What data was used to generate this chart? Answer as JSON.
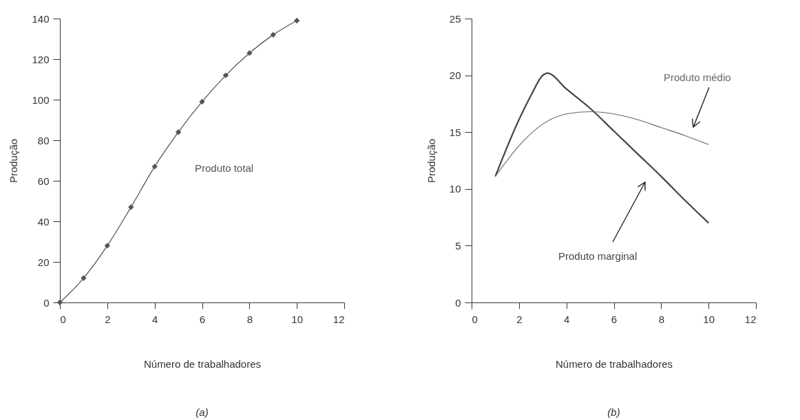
{
  "chart_data": [
    {
      "type": "line",
      "xlabel": "Número de trabalhadores",
      "ylabel": "Produção",
      "xlim": [
        0,
        12
      ],
      "xticks": [
        0,
        2,
        4,
        6,
        8,
        10,
        12
      ],
      "ylim": [
        0,
        140
      ],
      "yticks": [
        0,
        20,
        40,
        60,
        80,
        100,
        120,
        140
      ],
      "marker": "diamond",
      "annotations": [
        "(a)"
      ],
      "x": [
        0,
        1,
        2,
        3,
        4,
        5,
        6,
        7,
        8,
        9,
        10
      ],
      "series": [
        {
          "name": "Produto total",
          "color": "#555555",
          "values": [
            0,
            12,
            28,
            47,
            67,
            84,
            99,
            112,
            123,
            132,
            139
          ]
        }
      ]
    },
    {
      "type": "line",
      "xlabel": "Número de trabalhadores",
      "ylabel": "Produção",
      "xlim": [
        0,
        12
      ],
      "xticks": [
        0,
        2,
        4,
        6,
        8,
        10,
        12
      ],
      "ylim": [
        0,
        25
      ],
      "yticks": [
        0,
        5,
        10,
        15,
        20,
        25
      ],
      "annotations": [
        "(b)"
      ],
      "series": [
        {
          "name": "Produto marginal",
          "color": "#444444",
          "x": [
            1,
            2,
            2.5,
            3,
            3.2,
            4,
            5,
            6,
            7,
            8,
            9,
            10
          ],
          "values": [
            11.1,
            16.1,
            18.2,
            20.0,
            20.2,
            18.8,
            17.1,
            15.1,
            13.1,
            11.1,
            9.0,
            7.0
          ]
        },
        {
          "name": "Produto médio",
          "color": "#666666",
          "x": [
            1,
            2,
            3,
            4,
            5,
            6,
            7,
            8,
            9,
            10
          ],
          "values": [
            11.1,
            13.8,
            15.7,
            16.6,
            16.8,
            16.6,
            16.1,
            15.4,
            14.7,
            13.9
          ]
        }
      ]
    }
  ]
}
